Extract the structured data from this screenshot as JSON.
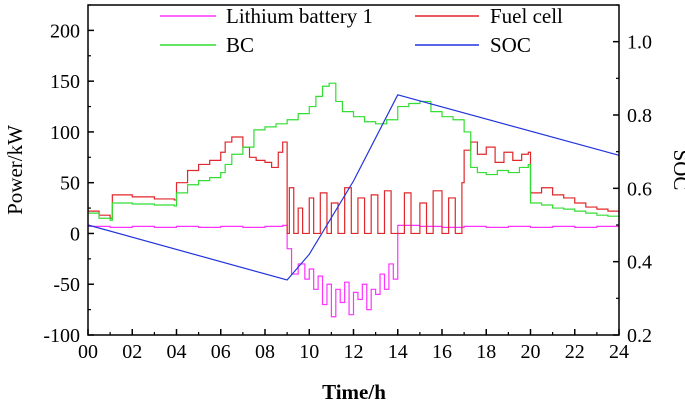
{
  "chart_data": {
    "type": "line",
    "title": "",
    "xlabel": "Time/h",
    "ylabel": "Power/kW",
    "y2label": "SOC",
    "xlim": [
      0,
      24
    ],
    "ylim": [
      -100,
      225
    ],
    "y2lim": [
      0.2,
      1.1
    ],
    "x_ticks": [
      0,
      2,
      4,
      6,
      8,
      10,
      12,
      14,
      16,
      18,
      20,
      22,
      24
    ],
    "x_tick_labels": [
      "00",
      "02",
      "04",
      "06",
      "08",
      "10",
      "12",
      "14",
      "16",
      "18",
      "20",
      "22",
      "24"
    ],
    "y_ticks": [
      -100,
      -50,
      0,
      50,
      100,
      150,
      200
    ],
    "y_tick_labels": [
      "-100",
      "-50",
      "0",
      "50",
      "100",
      "150",
      "200"
    ],
    "y2_ticks": [
      0.2,
      0.4,
      0.6,
      0.8,
      1.0
    ],
    "y2_tick_labels": [
      "0.2",
      "0.4",
      "0.6",
      "0.8",
      "1.0"
    ],
    "grid": false,
    "legend_position": "top",
    "series": [
      {
        "name": "Lithium battery 1",
        "color": "#ff33ff",
        "axis": "left",
        "points": [
          [
            0,
            7
          ],
          [
            0.5,
            7
          ],
          [
            1,
            6
          ],
          [
            2,
            7
          ],
          [
            3,
            6
          ],
          [
            4,
            7
          ],
          [
            5,
            6
          ],
          [
            6,
            7
          ],
          [
            7,
            6
          ],
          [
            8,
            7
          ],
          [
            8.8,
            8
          ],
          [
            9,
            5
          ],
          [
            9.0,
            -15
          ],
          [
            9.2,
            -40
          ],
          [
            9.5,
            -30
          ],
          [
            9.8,
            -45
          ],
          [
            10,
            -35
          ],
          [
            10.2,
            -55
          ],
          [
            10.4,
            -42
          ],
          [
            10.6,
            -70
          ],
          [
            10.8,
            -50
          ],
          [
            11,
            -82
          ],
          [
            11.2,
            -55
          ],
          [
            11.4,
            -68
          ],
          [
            11.6,
            -48
          ],
          [
            11.8,
            -80
          ],
          [
            12,
            -58
          ],
          [
            12.2,
            -65
          ],
          [
            12.4,
            -50
          ],
          [
            12.6,
            -75
          ],
          [
            12.8,
            -55
          ],
          [
            13,
            -60
          ],
          [
            13.2,
            -40
          ],
          [
            13.4,
            -55
          ],
          [
            13.6,
            -30
          ],
          [
            13.8,
            -45
          ],
          [
            14,
            -20
          ],
          [
            14,
            8
          ],
          [
            15,
            7
          ],
          [
            16,
            6
          ],
          [
            17,
            7
          ],
          [
            18,
            6
          ],
          [
            19,
            7
          ],
          [
            20,
            6
          ],
          [
            21,
            7
          ],
          [
            22,
            6
          ],
          [
            23,
            7
          ],
          [
            24,
            7
          ]
        ]
      },
      {
        "name": "Fuel cell",
        "color": "#e0272b",
        "axis": "left",
        "points": [
          [
            0,
            22
          ],
          [
            0.5,
            18
          ],
          [
            1,
            15
          ],
          [
            1.1,
            38
          ],
          [
            2,
            36
          ],
          [
            3,
            34
          ],
          [
            3.9,
            33
          ],
          [
            4,
            50
          ],
          [
            4.5,
            62
          ],
          [
            5,
            68
          ],
          [
            5.5,
            72
          ],
          [
            6,
            80
          ],
          [
            6.2,
            90
          ],
          [
            6.5,
            95
          ],
          [
            7,
            85
          ],
          [
            7.3,
            75
          ],
          [
            7.6,
            72
          ],
          [
            8,
            70
          ],
          [
            8.3,
            65
          ],
          [
            8.6,
            80
          ],
          [
            8.8,
            90
          ],
          [
            9,
            0
          ],
          [
            9.1,
            45
          ],
          [
            9.3,
            0
          ],
          [
            9.5,
            25
          ],
          [
            9.7,
            0
          ],
          [
            10,
            35
          ],
          [
            10.2,
            0
          ],
          [
            10.5,
            40
          ],
          [
            10.8,
            0
          ],
          [
            11,
            30
          ],
          [
            11.3,
            0
          ],
          [
            11.6,
            45
          ],
          [
            11.9,
            0
          ],
          [
            12.2,
            35
          ],
          [
            12.5,
            0
          ],
          [
            12.8,
            38
          ],
          [
            13.1,
            0
          ],
          [
            13.4,
            42
          ],
          [
            13.7,
            0
          ],
          [
            14,
            0
          ],
          [
            14.3,
            40
          ],
          [
            14.6,
            0
          ],
          [
            15,
            30
          ],
          [
            15.3,
            0
          ],
          [
            15.6,
            42
          ],
          [
            16,
            0
          ],
          [
            16.3,
            35
          ],
          [
            16.6,
            0
          ],
          [
            16.9,
            50
          ],
          [
            17,
            82
          ],
          [
            17.3,
            90
          ],
          [
            17.6,
            78
          ],
          [
            18,
            85
          ],
          [
            18.4,
            70
          ],
          [
            18.8,
            80
          ],
          [
            19.2,
            72
          ],
          [
            19.6,
            78
          ],
          [
            19.9,
            80
          ],
          [
            20,
            40
          ],
          [
            20.5,
            45
          ],
          [
            21,
            38
          ],
          [
            21.5,
            35
          ],
          [
            22,
            30
          ],
          [
            22.5,
            26
          ],
          [
            23,
            24
          ],
          [
            23.5,
            22
          ],
          [
            24,
            20
          ]
        ]
      },
      {
        "name": "BC",
        "color": "#33dd33",
        "axis": "left",
        "points": [
          [
            0,
            20
          ],
          [
            0.5,
            15
          ],
          [
            1,
            13
          ],
          [
            1.1,
            30
          ],
          [
            2,
            29
          ],
          [
            3,
            28
          ],
          [
            3.9,
            27
          ],
          [
            4,
            40
          ],
          [
            4.5,
            48
          ],
          [
            5,
            52
          ],
          [
            5.5,
            55
          ],
          [
            6,
            60
          ],
          [
            6.2,
            68
          ],
          [
            6.5,
            78
          ],
          [
            7,
            85
          ],
          [
            7.5,
            102
          ],
          [
            8,
            105
          ],
          [
            8.5,
            108
          ],
          [
            9,
            112
          ],
          [
            9.5,
            118
          ],
          [
            10,
            125
          ],
          [
            10.3,
            135
          ],
          [
            10.6,
            145
          ],
          [
            10.9,
            148
          ],
          [
            11.2,
            130
          ],
          [
            11.5,
            120
          ],
          [
            12,
            115
          ],
          [
            12.5,
            110
          ],
          [
            13,
            108
          ],
          [
            13.5,
            112
          ],
          [
            14,
            125
          ],
          [
            14.5,
            128
          ],
          [
            15,
            130
          ],
          [
            15.5,
            120
          ],
          [
            16,
            115
          ],
          [
            16.5,
            112
          ],
          [
            17,
            100
          ],
          [
            17.3,
            65
          ],
          [
            17.6,
            60
          ],
          [
            18,
            58
          ],
          [
            18.5,
            62
          ],
          [
            19,
            60
          ],
          [
            19.5,
            65
          ],
          [
            19.9,
            68
          ],
          [
            20,
            30
          ],
          [
            20.5,
            28
          ],
          [
            21,
            25
          ],
          [
            21.5,
            24
          ],
          [
            22,
            22
          ],
          [
            22.5,
            20
          ],
          [
            23,
            18
          ],
          [
            23.5,
            17
          ],
          [
            24,
            16
          ]
        ]
      },
      {
        "name": "SOC",
        "color": "#2233dd",
        "axis": "right",
        "points": [
          [
            0,
            0.5
          ],
          [
            9,
            0.35
          ],
          [
            10,
            0.42
          ],
          [
            12,
            0.62
          ],
          [
            14,
            0.855
          ],
          [
            24,
            0.69
          ]
        ]
      }
    ]
  }
}
